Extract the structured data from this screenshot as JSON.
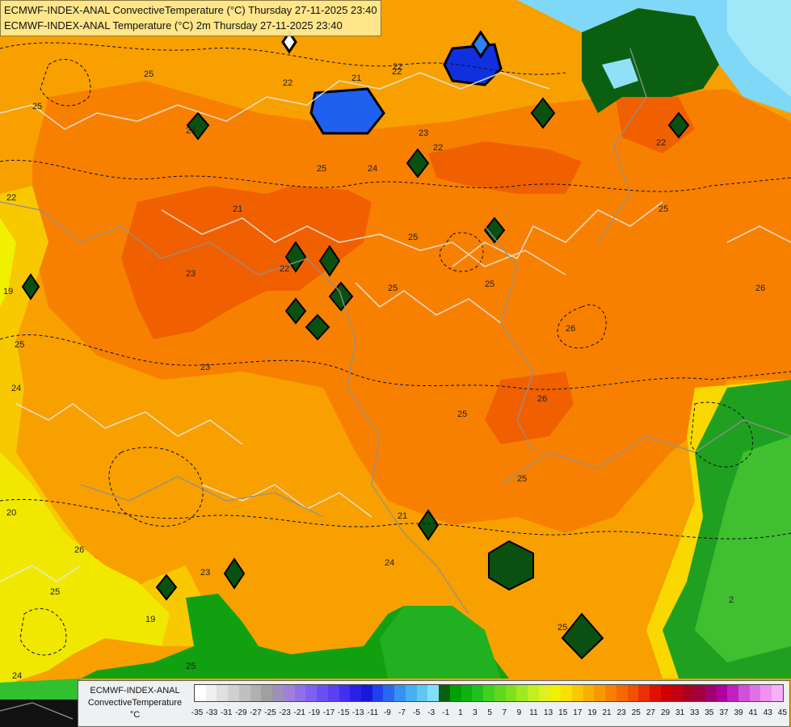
{
  "header": {
    "line1": "ECMWF-INDEX-ANAL ConvectiveTemperature (°C) Thursday 27-11-2025 23:40",
    "line2": "ECMWF-INDEX-ANAL Temperature (°C) 2m Thursday 27-11-2025 23:40"
  },
  "legend": {
    "name_line1": "ECMWF-INDEX-ANAL",
    "name_line2": "ConvectiveTemperature",
    "unit": "°C",
    "ticks": [
      "-35",
      "-33",
      "-31",
      "-29",
      "-27",
      "-25",
      "-23",
      "-21",
      "-19",
      "-17",
      "-15",
      "-13",
      "-11",
      "-9",
      "-7",
      "-5",
      "-3",
      "-1",
      "1",
      "3",
      "5",
      "7",
      "9",
      "11",
      "13",
      "15",
      "17",
      "19",
      "21",
      "23",
      "25",
      "27",
      "29",
      "31",
      "33",
      "35",
      "37",
      "39",
      "41",
      "43",
      "45"
    ],
    "colors": [
      "#ffffff",
      "#f4f4f4",
      "#e8e8e8",
      "#dcdcdc",
      "#d0d0d0",
      "#c4c4c4",
      "#b8b8b8",
      "#acacac",
      "#a8a0b8",
      "#a890c8",
      "#a080d8",
      "#9070e0",
      "#8060e8",
      "#7050f0",
      "#6040f0",
      "#5030f0",
      "#3030f0",
      "#1010e0",
      "#2050f0",
      "#2070f0",
      "#3090f0",
      "#40a8f0",
      "#50c0f0",
      "#70d8f8",
      "#90e8f8",
      "#00b000",
      "#20c020",
      "#40d020",
      "#60d820",
      "#80e020",
      "#a0e820",
      "#c0f020",
      "#e0f020",
      "#f8f000",
      "#f8d800",
      "#f8c000",
      "#f8a800",
      "#f89000",
      "#f87800",
      "#f86000",
      "#f04000",
      "#e02000",
      "#d00000",
      "#c00000",
      "#b00010",
      "#a00030",
      "#a00060",
      "#b00090",
      "#c020b0",
      "#d040d0",
      "#e060e0",
      "#f080f0",
      "#f8a0f8"
    ],
    "colors_main": [
      "#ffffff",
      "#f0f0f0",
      "#e0e0e0",
      "#d0d0d0",
      "#c0c0c0",
      "#b0b0b0",
      "#a0a0a0",
      "#9e90b8",
      "#a080d8",
      "#9070e8",
      "#7f60f0",
      "#6a50f0",
      "#5a40f0",
      "#4030f0",
      "#2a20e8",
      "#1818d8",
      "#2040f0",
      "#2868f0",
      "#3890f0",
      "#48b0f0",
      "#60c8f0",
      "#80e0f8",
      "#0a6010",
      "#00a000",
      "#10b010",
      "#20c020",
      "#40d020",
      "#60d820",
      "#80e020",
      "#a0e820",
      "#c0f020",
      "#e0f020",
      "#f0f000",
      "#f8e000",
      "#f8c800",
      "#f8b000",
      "#f89800",
      "#f88000",
      "#f86800",
      "#f05000",
      "#e83000",
      "#e01000",
      "#d00000",
      "#c00010",
      "#a80020",
      "#a00040",
      "#a00070",
      "#b000a0",
      "#c020c0",
      "#d050d8",
      "#e070e8",
      "#f090f0",
      "#f8b0f8"
    ]
  },
  "map": {
    "contour_labels": [
      "25",
      "25",
      "22",
      "22",
      "21",
      "22",
      "23",
      "24",
      "25",
      "24",
      "21",
      "25",
      "22",
      "23",
      "22",
      "25",
      "25",
      "25",
      "26",
      "26",
      "26",
      "25",
      "25",
      "24",
      "23",
      "23",
      "20",
      "19",
      "26",
      "21",
      "24",
      "22",
      "25",
      "24",
      "25",
      "25",
      "19",
      "25",
      "22",
      "2"
    ]
  }
}
